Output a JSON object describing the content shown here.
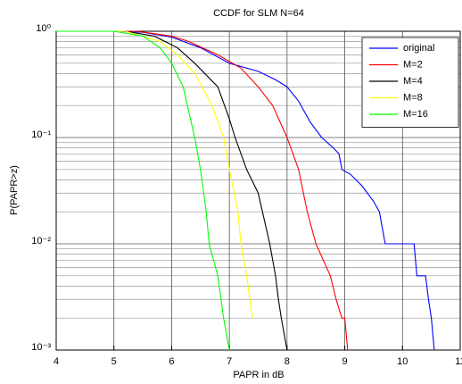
{
  "chart_data": {
    "type": "line",
    "title": "CCDF for SLM N=64",
    "xlabel": "PAPR in dB",
    "ylabel": "P(PAPR>z)",
    "xlim": [
      4,
      11
    ],
    "xticks": [
      4,
      5,
      6,
      7,
      8,
      9,
      10,
      11
    ],
    "ylim": [
      0.001,
      1
    ],
    "yscale": "log",
    "yticks": [
      {
        "value": 0.001,
        "label": "10⁻³"
      },
      {
        "value": 0.01,
        "label": "10⁻²"
      },
      {
        "value": 0.1,
        "label": "10⁻¹"
      },
      {
        "value": 1,
        "label": "10⁰"
      }
    ],
    "grid": true,
    "minor_grid": true,
    "legend": "upper right",
    "series": [
      {
        "name": "original",
        "color": "#0000ff",
        "x": [
          4,
          4.5,
          5,
          5.5,
          6,
          6.5,
          7,
          7.5,
          7.8,
          8,
          8.2,
          8.4,
          8.6,
          8.8,
          8.9,
          8.95,
          9.1,
          9.3,
          9.5,
          9.6,
          9.7,
          10.2,
          10.25,
          10.4,
          10.45,
          10.5,
          10.55
        ],
        "values": [
          1,
          1,
          1,
          0.98,
          0.88,
          0.7,
          0.5,
          0.42,
          0.35,
          0.3,
          0.22,
          0.14,
          0.1,
          0.08,
          0.07,
          0.05,
          0.045,
          0.035,
          0.025,
          0.02,
          0.01,
          0.01,
          0.005,
          0.005,
          0.003,
          0.002,
          0.001
        ]
      },
      {
        "name": "M=2",
        "color": "#ff0000",
        "x": [
          4,
          5.4,
          6,
          6.3,
          6.8,
          7.2,
          7.5,
          7.75,
          8,
          8.2,
          8.35,
          8.5,
          8.75,
          8.85,
          8.95,
          9,
          9.05
        ],
        "values": [
          1,
          1,
          0.9,
          0.8,
          0.6,
          0.45,
          0.3,
          0.2,
          0.1,
          0.05,
          0.02,
          0.01,
          0.005,
          0.003,
          0.002,
          0.002,
          0.001
        ]
      },
      {
        "name": "M=4",
        "color": "#000000",
        "x": [
          4,
          5.2,
          5.7,
          6.1,
          6.4,
          6.8,
          7,
          7.1,
          7.3,
          7.5,
          7.7,
          7.8,
          7.85,
          7.9,
          8
        ],
        "values": [
          1,
          1,
          0.9,
          0.7,
          0.5,
          0.3,
          0.15,
          0.1,
          0.05,
          0.03,
          0.01,
          0.005,
          0.003,
          0.002,
          0.001
        ]
      },
      {
        "name": "M=8",
        "color": "#ffff00",
        "x": [
          4,
          5.2,
          5.8,
          6.1,
          6.4,
          6.7,
          6.9,
          7,
          7.15,
          7.2,
          7.3,
          7.4
        ],
        "values": [
          1,
          1,
          0.8,
          0.6,
          0.4,
          0.2,
          0.1,
          0.05,
          0.02,
          0.01,
          0.005,
          0.002
        ]
      },
      {
        "name": "M=16",
        "color": "#00ff00",
        "x": [
          4,
          5,
          5.5,
          5.8,
          6,
          6.2,
          6.4,
          6.5,
          6.6,
          6.65,
          6.8,
          6.9,
          7
        ],
        "values": [
          1,
          1,
          0.9,
          0.7,
          0.5,
          0.3,
          0.1,
          0.05,
          0.02,
          0.01,
          0.005,
          0.002,
          0.001
        ]
      }
    ]
  }
}
